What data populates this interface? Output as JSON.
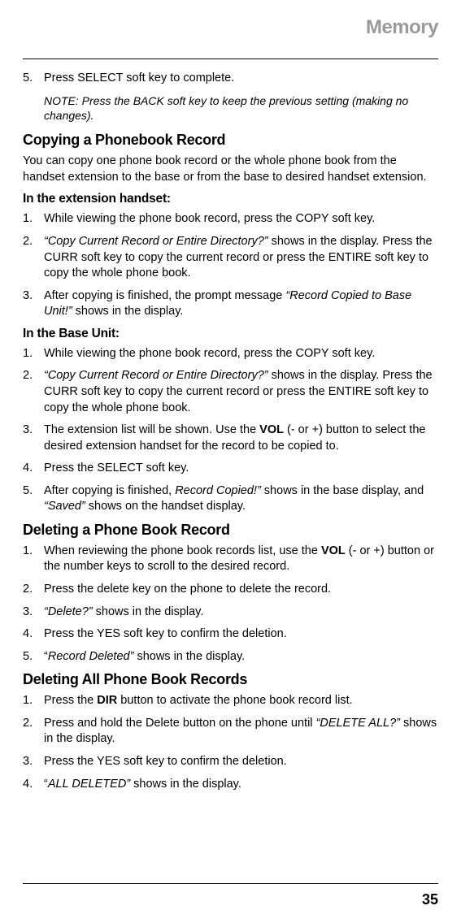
{
  "header": {
    "section_title": "Memory"
  },
  "top_step": {
    "num": "5.",
    "text": "Press SELECT soft key to complete."
  },
  "note": "NOTE: Press the BACK soft key to keep the previous setting (making no changes).",
  "copying": {
    "heading": "Copying a Phonebook Record",
    "intro": "You can copy one phone book record or the whole phone book from the handset extension to the base or from the base to desired handset extension.",
    "ext_heading": "In the extension handset:",
    "ext_steps": [
      {
        "num": "1.",
        "text": "While viewing the phone book record, press the COPY soft key."
      },
      {
        "num": "2.",
        "lead_italic": "“Copy Current Record or Entire Directory?”",
        "rest": " shows in the display. Press the CURR soft key to copy the current record or press the ENTIRE soft key to copy the whole phone book."
      },
      {
        "num": "3.",
        "pre": "After copying is finished, the prompt message ",
        "mid_italic": "“Record Copied to Base Unit!”",
        "post": " shows in the display."
      }
    ],
    "base_heading": "In the Base Unit:",
    "base_steps": [
      {
        "num": "1.",
        "text": "While viewing the phone book record, press the COPY soft key."
      },
      {
        "num": "2.",
        "lead_italic": "“Copy Current Record or Entire Directory?”",
        "rest": " shows in the display. Press the CURR soft key to copy the current record or press the ENTIRE soft key to copy the whole phone book."
      },
      {
        "num": "3.",
        "pre": "The extension list will be shown. Use the ",
        "bold": "VOL",
        "post": " (- or +) button to select the desired extension handset for the record to be copied to."
      },
      {
        "num": "4.",
        "text": "Press the SELECT soft key."
      },
      {
        "num": "5.",
        "pre": "After copying is finished, ",
        "mid_italic": "Record Copied!”",
        "mid2": " shows in the base display, and ",
        "mid3_italic": "“Saved”",
        "post": " shows on the handset display."
      }
    ]
  },
  "deleting_one": {
    "heading": "Deleting a Phone Book Record",
    "steps": [
      {
        "num": "1.",
        "pre": "When reviewing the phone book records list, use the ",
        "bold": "VOL",
        "post": " (- or +) button or the number keys to scroll to the desired record."
      },
      {
        "num": "2.",
        "text": "Press the delete key on the phone to delete the record."
      },
      {
        "num": "3.",
        "lead_italic": "“Delete?”",
        "rest": " shows in the display."
      },
      {
        "num": "4.",
        "text": "Press the YES soft key to confirm the deletion."
      },
      {
        "num": "5.",
        "pre": "“",
        "mid_italic": "Record Deleted”",
        "post": " shows in the display."
      }
    ]
  },
  "deleting_all": {
    "heading": "Deleting All Phone Book Records",
    "steps": [
      {
        "num": "1.",
        "pre": "Press the ",
        "bold": "DIR",
        "post": " button to activate the phone book record list."
      },
      {
        "num": "2.",
        "pre": "Press and hold the Delete button on the phone until ",
        "mid_italic": "“DELETE ALL?”",
        "post": " shows in the display."
      },
      {
        "num": "3.",
        "text": "Press the YES soft key to confirm the deletion."
      },
      {
        "num": "4.",
        "pre": "“",
        "mid_italic": "ALL DELETED”",
        "post": " shows in the display."
      }
    ]
  },
  "page_number": "35"
}
